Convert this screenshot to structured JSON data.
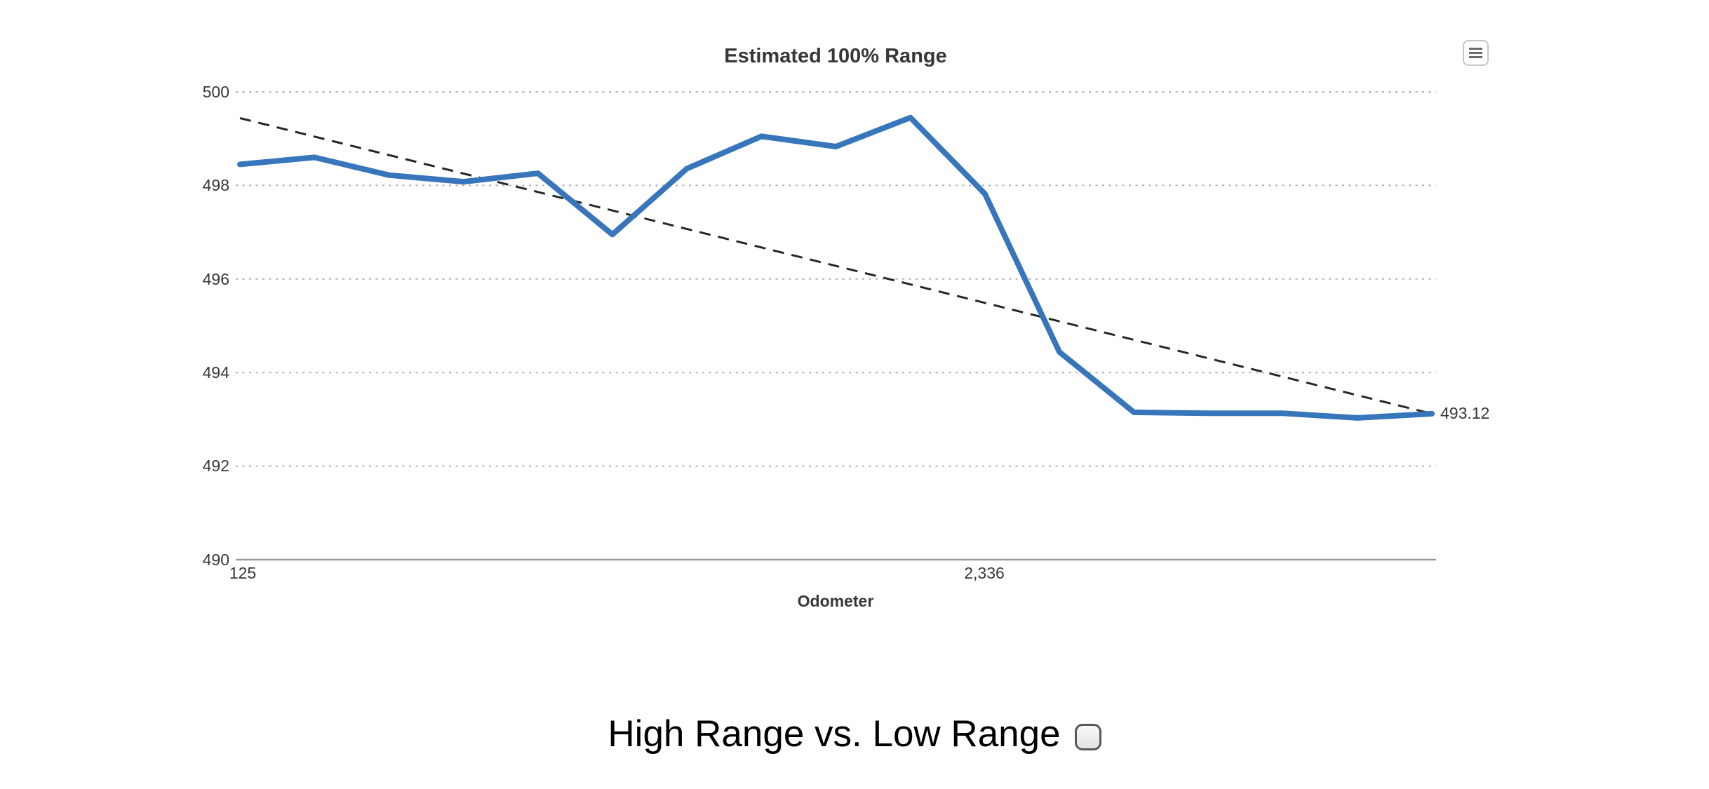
{
  "chart": {
    "title": "Estimated 100% Range",
    "x_axis_title": "Odometer",
    "y_tick_labels": [
      "500",
      "498",
      "496",
      "494",
      "492",
      "490"
    ],
    "x_tick_labels": [
      "125",
      "2,336"
    ],
    "end_label": "493.12",
    "context_menu_icon": "hamburger-icon",
    "colors": {
      "series_line": "#3876BC",
      "trend_line": "#262626",
      "gridline": "#b0b0b0",
      "axis_line": "#9a9a9a",
      "label_text": "#37373b"
    }
  },
  "footer": {
    "heading": "High Range vs. Low Range",
    "checkbox_checked": false
  },
  "chart_data": {
    "type": "line",
    "title": "Estimated 100% Range",
    "xlabel": "Odometer",
    "ylabel": "",
    "ylim": [
      490,
      500
    ],
    "y_ticks": [
      490,
      492,
      494,
      496,
      498,
      500
    ],
    "x_tick_labels": [
      "125",
      "2,336"
    ],
    "x_tick_point_indexes": [
      0,
      10
    ],
    "grid": "horizontal-dotted",
    "legend": "none",
    "last_point_label": "493.12",
    "series": [
      {
        "name": "Estimated 100% Range",
        "type": "line",
        "style": "solid",
        "color": "#3876BC",
        "values": [
          498.45,
          498.6,
          498.22,
          498.08,
          498.26,
          496.95,
          498.36,
          499.05,
          498.83,
          499.45,
          497.82,
          494.44,
          493.15,
          493.13,
          493.13,
          493.03,
          493.12
        ]
      },
      {
        "name": "Trend",
        "type": "line",
        "style": "dashed",
        "color": "#262626",
        "endpoint_values": [
          499.44,
          493.12
        ]
      }
    ]
  }
}
